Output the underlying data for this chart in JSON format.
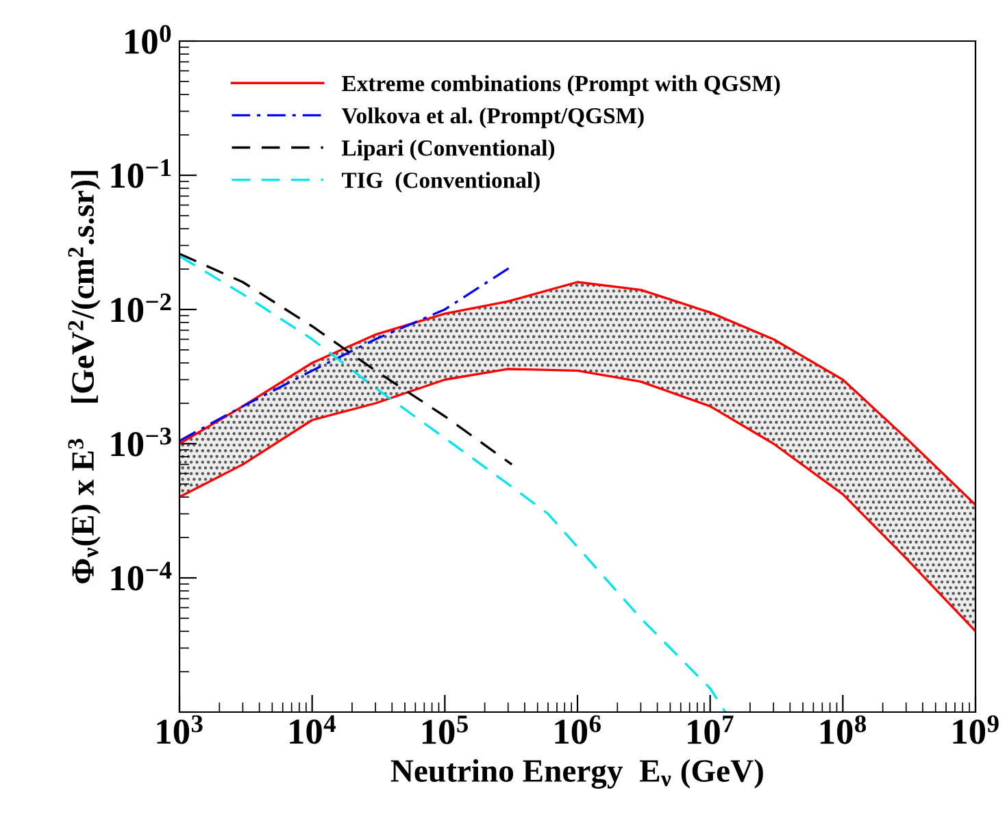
{
  "chart_data": {
    "type": "line",
    "xlabel": "Neutrino Energy  E$_{ν}$ (GeV)",
    "ylabel": "Φ$_{ν}$(E) x E$^{3}$    [GeV$^{2}$/(cm$^{2}$.s.sr)]",
    "log": "xy",
    "grid": false,
    "legend": "top left",
    "marker": "none",
    "xlim": [
      1000,
      1000000000
    ],
    "ylim": [
      1e-05,
      1
    ],
    "xticks": [
      {
        "value": 1000,
        "label": "10$^{3}$"
      },
      {
        "value": 10000,
        "label": "10$^{4}$"
      },
      {
        "value": 100000,
        "label": "10$^{5}$"
      },
      {
        "value": 1000000,
        "label": "10$^{6}$"
      },
      {
        "value": 10000000,
        "label": "10$^{7}$"
      },
      {
        "value": 100000000,
        "label": "10$^{8}$"
      },
      {
        "value": 1000000000,
        "label": "10$^{9}$"
      }
    ],
    "yticks": [
      {
        "value": 1e-05,
        "label": null
      },
      {
        "value": 0.0001,
        "label": "10$^{−4}$"
      },
      {
        "value": 0.001,
        "label": "10$^{−3}$"
      },
      {
        "value": 0.01,
        "label": "10$^{−2}$"
      },
      {
        "value": 0.1,
        "label": "10$^{−1}$"
      },
      {
        "value": 1,
        "label": "10$^{0}$"
      }
    ],
    "series": [
      {
        "name": "Extreme combinations (Prompt with QGSM)",
        "color": "#ff0000",
        "line_style": "solid",
        "x": [
          1000,
          3000,
          10000,
          30000,
          100000,
          300000,
          1000000,
          3000000,
          10000000,
          30000000,
          100000000,
          300000000,
          1000000000
        ],
        "values": [
          0.001,
          0.0019,
          0.004,
          0.0065,
          0.0093,
          0.0115,
          0.016,
          0.014,
          0.0095,
          0.006,
          0.003,
          0.0011,
          0.00035
        ],
        "upper": [
          0.001,
          0.0019,
          0.004,
          0.0065,
          0.0093,
          0.0115,
          0.016,
          0.014,
          0.0095,
          0.006,
          0.003,
          0.0011,
          0.00035
        ],
        "lower": [
          0.0004,
          0.0007,
          0.0015,
          0.002,
          0.003,
          0.0036,
          0.0035,
          0.0029,
          0.0019,
          0.001,
          0.00042,
          0.00014,
          4e-05
        ]
      },
      {
        "color": "#ff0000",
        "line_style": "solid",
        "x": [
          1000,
          3000,
          10000,
          30000,
          100000,
          300000,
          1000000,
          3000000,
          10000000,
          30000000,
          100000000,
          300000000,
          1000000000
        ],
        "values": [
          0.0004,
          0.0007,
          0.0015,
          0.002,
          0.003,
          0.0036,
          0.0035,
          0.0029,
          0.0019,
          0.001,
          0.00042,
          0.00014,
          4e-05
        ]
      },
      {
        "name": "Volkova et al. (Prompt/QGSM)",
        "color": "#0000ff",
        "line_style": "dashdot",
        "x": [
          1000,
          3000,
          10000,
          30000,
          100000,
          320000
        ],
        "values": [
          0.00105,
          0.0019,
          0.0035,
          0.006,
          0.01,
          0.021
        ]
      },
      {
        "name": "Lipari (Conventional)",
        "color": "#000000",
        "line_style": "dashed",
        "x": [
          1000,
          3000,
          10000,
          30000,
          100000,
          320000
        ],
        "values": [
          0.026,
          0.016,
          0.0075,
          0.0035,
          0.0016,
          0.0007
        ]
      },
      {
        "name": "TIG  (Conventional)",
        "color": "#00e5ee",
        "line_style": "dashed",
        "x": [
          1000,
          3000,
          10000,
          30000,
          100000,
          300000,
          600000,
          1000000,
          3000000,
          10000000,
          13000000
        ],
        "values": [
          0.025,
          0.013,
          0.006,
          0.0026,
          0.0011,
          0.0005,
          0.0003,
          0.00017,
          5e-05,
          1.5e-05,
          1e-05
        ]
      }
    ]
  }
}
